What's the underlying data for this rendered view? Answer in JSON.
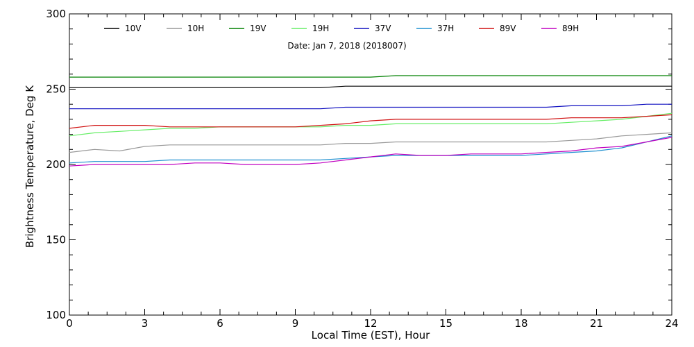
{
  "chart_data": {
    "type": "line",
    "title": "Date: Jan  7, 2018 (2018007)",
    "xlabel": "Local Time (EST), Hour",
    "ylabel": "Brightness Temperature, Deg K",
    "xlim": [
      0,
      24
    ],
    "ylim": [
      100,
      300
    ],
    "xticks": [
      0,
      3,
      6,
      9,
      12,
      15,
      18,
      21,
      24
    ],
    "yticks": [
      100,
      150,
      200,
      250,
      300
    ],
    "grid": false,
    "legend_position": "top",
    "x": [
      0,
      1,
      2,
      3,
      4,
      5,
      6,
      7,
      8,
      9,
      10,
      11,
      12,
      13,
      14,
      15,
      16,
      17,
      18,
      19,
      20,
      21,
      22,
      23,
      24
    ],
    "series": [
      {
        "name": "10V",
        "color": "#000000",
        "values": [
          251,
          251,
          251,
          251,
          251,
          251,
          251,
          251,
          251,
          251,
          251,
          252,
          252,
          252,
          252,
          252,
          252,
          252,
          252,
          252,
          252,
          252,
          252,
          252,
          252
        ]
      },
      {
        "name": "10H",
        "color": "#999999",
        "values": [
          208,
          210,
          209,
          212,
          213,
          213,
          213,
          213,
          213,
          213,
          213,
          214,
          214,
          215,
          215,
          215,
          215,
          215,
          215,
          215,
          216,
          217,
          219,
          220,
          221
        ]
      },
      {
        "name": "19V",
        "color": "#008000",
        "values": [
          258,
          258,
          258,
          258,
          258,
          258,
          258,
          258,
          258,
          258,
          258,
          258,
          258,
          259,
          259,
          259,
          259,
          259,
          259,
          259,
          259,
          259,
          259,
          259,
          259
        ]
      },
      {
        "name": "19H",
        "color": "#66ee66",
        "values": [
          219,
          221,
          222,
          223,
          224,
          224,
          225,
          225,
          225,
          225,
          225,
          226,
          226,
          227,
          227,
          227,
          227,
          227,
          227,
          227,
          228,
          229,
          230,
          232,
          234
        ]
      },
      {
        "name": "37V",
        "color": "#1010c0",
        "values": [
          237,
          237,
          237,
          237,
          237,
          237,
          237,
          237,
          237,
          237,
          237,
          238,
          238,
          238,
          238,
          238,
          238,
          238,
          238,
          238,
          239,
          239,
          239,
          240,
          240
        ]
      },
      {
        "name": "37H",
        "color": "#1e90d0",
        "values": [
          201,
          202,
          202,
          202,
          203,
          203,
          203,
          203,
          203,
          203,
          203,
          204,
          205,
          206,
          206,
          206,
          206,
          206,
          206,
          207,
          208,
          209,
          211,
          215,
          219
        ]
      },
      {
        "name": "89V",
        "color": "#d01010",
        "values": [
          224,
          226,
          226,
          226,
          225,
          225,
          225,
          225,
          225,
          225,
          226,
          227,
          229,
          230,
          230,
          230,
          230,
          230,
          230,
          230,
          231,
          231,
          231,
          232,
          233
        ]
      },
      {
        "name": "89H",
        "color": "#c000c0",
        "values": [
          199,
          200,
          200,
          200,
          200,
          201,
          201,
          200,
          200,
          200,
          201,
          203,
          205,
          207,
          206,
          206,
          207,
          207,
          207,
          208,
          209,
          211,
          212,
          215,
          218
        ]
      }
    ]
  }
}
